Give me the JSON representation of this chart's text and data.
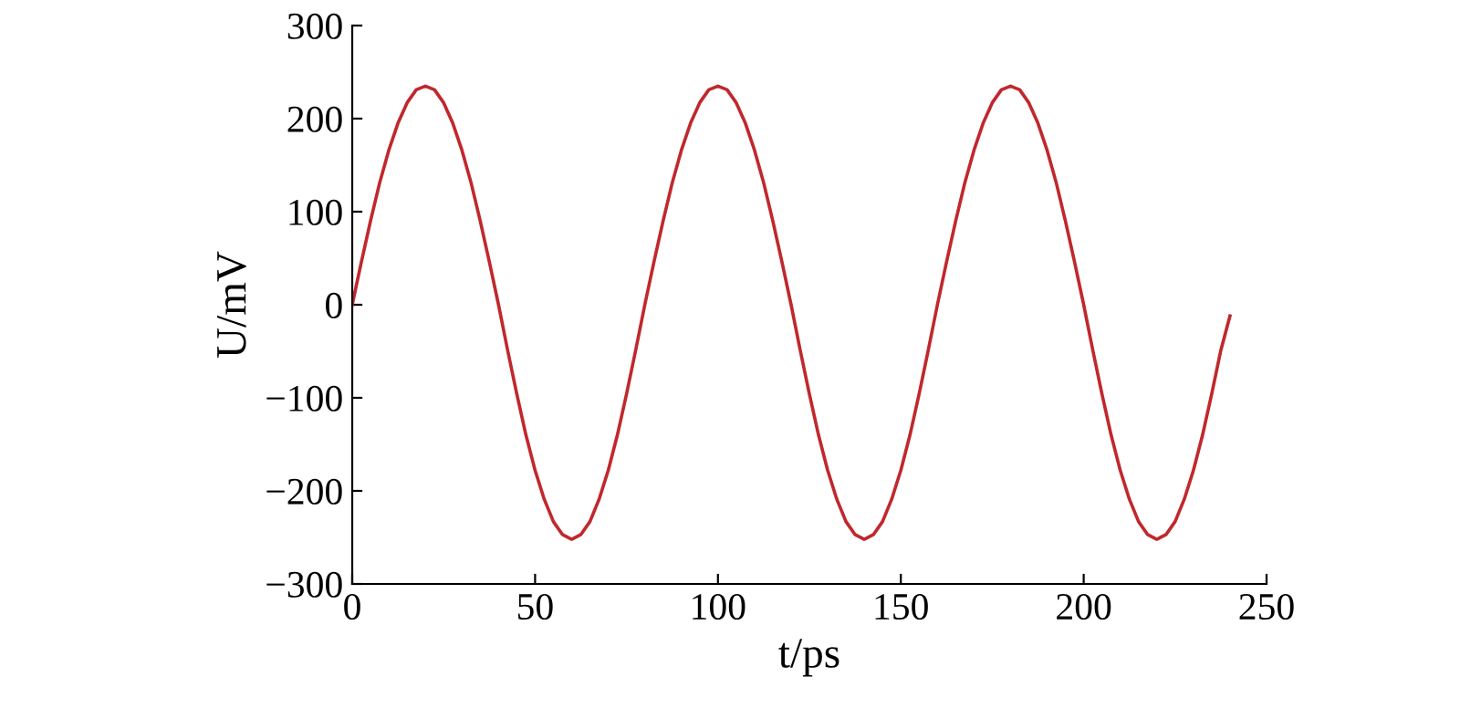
{
  "chart_data": {
    "type": "line",
    "xlabel": "t/ps",
    "ylabel": "U/mV",
    "x": [
      0,
      2.5,
      5,
      7.5,
      10,
      12.5,
      15,
      17.5,
      20,
      22.5,
      25,
      27.5,
      30,
      32.5,
      35,
      37.5,
      40,
      42.5,
      45,
      47.5,
      50,
      52.5,
      55,
      57.5,
      60,
      62.5,
      65,
      67.5,
      70,
      72.5,
      75,
      77.5,
      80,
      82.5,
      85,
      87.5,
      90,
      92.5,
      95,
      97.5,
      100,
      102.5,
      105,
      107.5,
      110,
      112.5,
      115,
      117.5,
      120,
      122.5,
      125,
      127.5,
      130,
      132.5,
      135,
      137.5,
      140,
      142.5,
      145,
      147.5,
      150,
      152.5,
      155,
      157.5,
      160,
      162.5,
      165,
      167.5,
      170,
      172.5,
      175,
      177.5,
      180,
      182.5,
      185,
      187.5,
      190,
      192.5,
      195,
      197.5,
      200,
      202.5,
      205,
      207.5,
      210,
      212.5,
      215,
      217.5,
      220,
      222.5,
      225,
      227.5,
      230,
      232.5,
      235,
      237.5,
      240
    ],
    "series": [
      {
        "color": "#c0282d",
        "values": [
          0,
          46,
          90,
          131,
          166,
          195,
          217,
          231,
          235,
          231,
          217,
          195,
          166,
          131,
          90,
          46,
          0,
          -49,
          -96,
          -140,
          -178,
          -209,
          -233,
          -247,
          -252,
          -247,
          -233,
          -209,
          -178,
          -140,
          -96,
          -49,
          0,
          46,
          90,
          131,
          166,
          195,
          217,
          231,
          235,
          231,
          217,
          195,
          166,
          131,
          90,
          46,
          0,
          -49,
          -96,
          -140,
          -178,
          -209,
          -233,
          -247,
          -252,
          -247,
          -233,
          -209,
          -178,
          -140,
          -96,
          -49,
          0,
          46,
          90,
          131,
          166,
          195,
          217,
          231,
          235,
          231,
          217,
          195,
          166,
          131,
          90,
          46,
          0,
          -49,
          -96,
          -140,
          -178,
          -209,
          -233,
          -247,
          -252,
          -247,
          -233,
          -209,
          -178,
          -140,
          -96,
          -49,
          -12
        ]
      }
    ],
    "xlim": [
      0,
      250
    ],
    "xticks": [
      0,
      50,
      100,
      150,
      200,
      250
    ],
    "ylim": [
      -300,
      300
    ],
    "yticks": [
      300,
      200,
      100,
      0,
      {
        "value": -100,
        "label": "−100"
      },
      {
        "value": -200,
        "label": "−200"
      },
      {
        "value": -300,
        "label": "−300"
      }
    ],
    "grid": false,
    "marker": "none",
    "line_style": "solid"
  }
}
